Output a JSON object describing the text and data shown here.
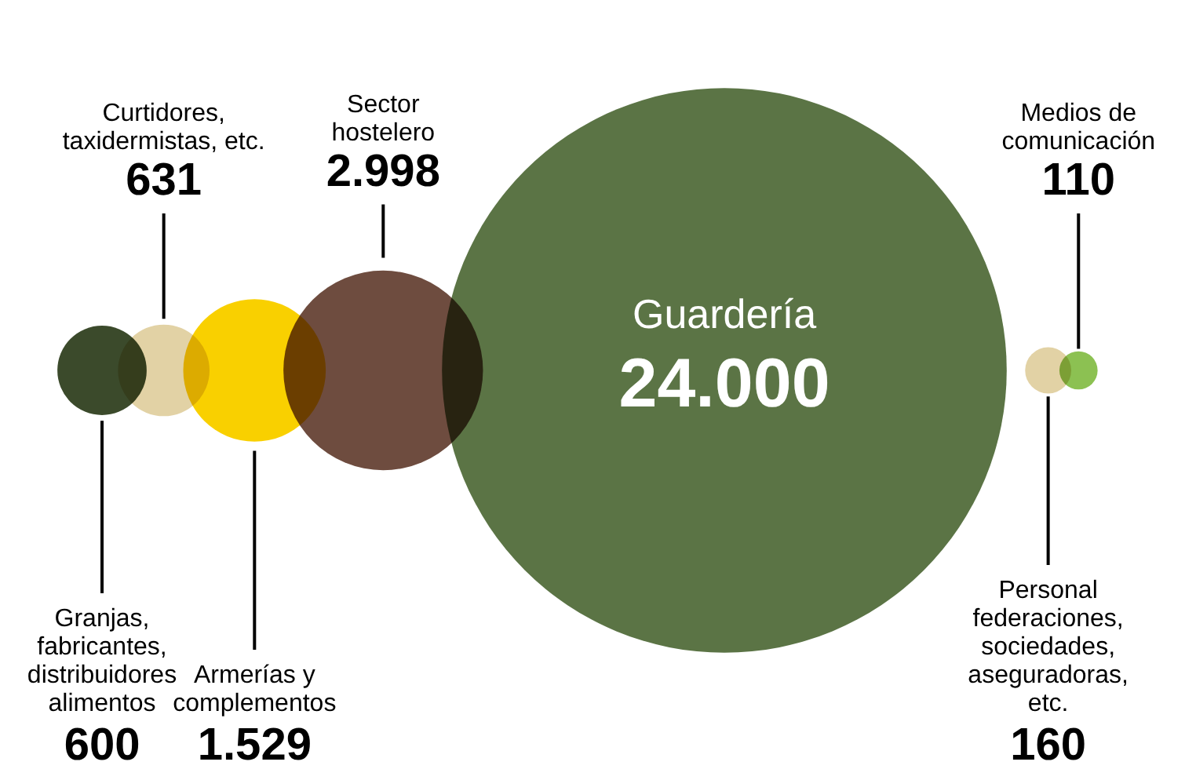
{
  "chart_data": {
    "type": "other",
    "categories": [
      "Granjas,\nfabricantes,\ndistribuidores\nalimentos",
      "Curtidores,\ntaxidermistas, etc.",
      "Armerías y\ncomplementos",
      "Sector\nhostelero",
      "Guardería",
      "Personal\nfederaciones,\nsociedades,\naseguradoras,\netc.",
      "Medios de\ncomunicación"
    ],
    "values": [
      600,
      631,
      1529,
      2998,
      24000,
      160,
      110
    ],
    "value_labels": [
      "600",
      "631",
      "1.529",
      "2.998",
      "24.000",
      "160",
      "110"
    ],
    "colors": [
      "#3b4a2b",
      "#e2d2a5",
      "#f9d000",
      "#6e4c3f",
      "#5b7445",
      "#e2d2a5",
      "#8cc152"
    ]
  }
}
